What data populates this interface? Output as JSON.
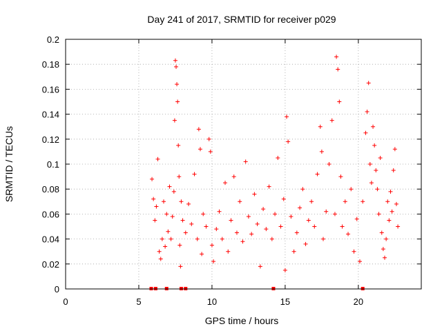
{
  "chart_data": {
    "type": "scatter",
    "title": "Day 241 of 2017, SRMTID for receiver p029",
    "xlabel": "GPS time / hours",
    "ylabel": "SRMTID / TECUs",
    "xlim": [
      0,
      24.3
    ],
    "ylim": [
      0,
      0.2
    ],
    "x_ticks": [
      0,
      5,
      10,
      15,
      20
    ],
    "x_tick_labels": [
      "0",
      "5",
      "10",
      "15",
      "20"
    ],
    "y_ticks": [
      0,
      0.02,
      0.04,
      0.06,
      0.08,
      0.1,
      0.12,
      0.14,
      0.16,
      0.18,
      0.2
    ],
    "y_tick_labels": [
      "0",
      "0.02",
      "0.04",
      "0.06",
      "0.08",
      "0.1",
      "0.12",
      "0.14",
      "0.16",
      "0.18",
      "0.2"
    ],
    "grid": true,
    "marker": "plus",
    "color": "#ff0000",
    "zero_markers_x": [
      5.85,
      6.15,
      6.9,
      7.9,
      8.2,
      14.2,
      20.3
    ],
    "points": [
      {
        "x": 5.9,
        "y": 0.088
      },
      {
        "x": 6.0,
        "y": 0.072
      },
      {
        "x": 6.1,
        "y": 0.055
      },
      {
        "x": 6.2,
        "y": 0.066
      },
      {
        "x": 6.3,
        "y": 0.104
      },
      {
        "x": 6.4,
        "y": 0.03
      },
      {
        "x": 6.5,
        "y": 0.024
      },
      {
        "x": 6.6,
        "y": 0.04
      },
      {
        "x": 6.7,
        "y": 0.07
      },
      {
        "x": 6.8,
        "y": 0.034
      },
      {
        "x": 6.9,
        "y": 0.06
      },
      {
        "x": 7.0,
        "y": 0.046
      },
      {
        "x": 7.1,
        "y": 0.082
      },
      {
        "x": 7.2,
        "y": 0.04
      },
      {
        "x": 7.3,
        "y": 0.058
      },
      {
        "x": 7.4,
        "y": 0.078
      },
      {
        "x": 7.45,
        "y": 0.135
      },
      {
        "x": 7.5,
        "y": 0.183
      },
      {
        "x": 7.55,
        "y": 0.178
      },
      {
        "x": 7.6,
        "y": 0.164
      },
      {
        "x": 7.65,
        "y": 0.15
      },
      {
        "x": 7.7,
        "y": 0.115
      },
      {
        "x": 7.75,
        "y": 0.09
      },
      {
        "x": 7.8,
        "y": 0.035
      },
      {
        "x": 7.85,
        "y": 0.018
      },
      {
        "x": 7.9,
        "y": 0.07
      },
      {
        "x": 8.0,
        "y": 0.055
      },
      {
        "x": 8.2,
        "y": 0.045
      },
      {
        "x": 8.4,
        "y": 0.068
      },
      {
        "x": 8.6,
        "y": 0.052
      },
      {
        "x": 8.8,
        "y": 0.092
      },
      {
        "x": 9.0,
        "y": 0.04
      },
      {
        "x": 9.1,
        "y": 0.128
      },
      {
        "x": 9.2,
        "y": 0.112
      },
      {
        "x": 9.3,
        "y": 0.028
      },
      {
        "x": 9.4,
        "y": 0.06
      },
      {
        "x": 9.6,
        "y": 0.05
      },
      {
        "x": 9.8,
        "y": 0.12
      },
      {
        "x": 9.9,
        "y": 0.11
      },
      {
        "x": 10.0,
        "y": 0.035
      },
      {
        "x": 10.1,
        "y": 0.022
      },
      {
        "x": 10.3,
        "y": 0.048
      },
      {
        "x": 10.5,
        "y": 0.062
      },
      {
        "x": 10.7,
        "y": 0.04
      },
      {
        "x": 10.9,
        "y": 0.085
      },
      {
        "x": 11.1,
        "y": 0.03
      },
      {
        "x": 11.3,
        "y": 0.055
      },
      {
        "x": 11.5,
        "y": 0.09
      },
      {
        "x": 11.7,
        "y": 0.045
      },
      {
        "x": 11.9,
        "y": 0.07
      },
      {
        "x": 12.1,
        "y": 0.038
      },
      {
        "x": 12.3,
        "y": 0.102
      },
      {
        "x": 12.5,
        "y": 0.058
      },
      {
        "x": 12.7,
        "y": 0.044
      },
      {
        "x": 12.9,
        "y": 0.076
      },
      {
        "x": 13.1,
        "y": 0.052
      },
      {
        "x": 13.3,
        "y": 0.018
      },
      {
        "x": 13.5,
        "y": 0.064
      },
      {
        "x": 13.7,
        "y": 0.048
      },
      {
        "x": 13.9,
        "y": 0.082
      },
      {
        "x": 14.1,
        "y": 0.04
      },
      {
        "x": 14.3,
        "y": 0.06
      },
      {
        "x": 14.5,
        "y": 0.105
      },
      {
        "x": 14.7,
        "y": 0.05
      },
      {
        "x": 14.9,
        "y": 0.072
      },
      {
        "x": 15.0,
        "y": 0.015
      },
      {
        "x": 15.1,
        "y": 0.138
      },
      {
        "x": 15.2,
        "y": 0.118
      },
      {
        "x": 15.4,
        "y": 0.058
      },
      {
        "x": 15.6,
        "y": 0.03
      },
      {
        "x": 15.8,
        "y": 0.045
      },
      {
        "x": 16.0,
        "y": 0.065
      },
      {
        "x": 16.2,
        "y": 0.08
      },
      {
        "x": 16.4,
        "y": 0.036
      },
      {
        "x": 16.6,
        "y": 0.055
      },
      {
        "x": 16.8,
        "y": 0.07
      },
      {
        "x": 17.0,
        "y": 0.05
      },
      {
        "x": 17.2,
        "y": 0.092
      },
      {
        "x": 17.4,
        "y": 0.13
      },
      {
        "x": 17.5,
        "y": 0.11
      },
      {
        "x": 17.6,
        "y": 0.04
      },
      {
        "x": 17.8,
        "y": 0.062
      },
      {
        "x": 18.0,
        "y": 0.1
      },
      {
        "x": 18.2,
        "y": 0.135
      },
      {
        "x": 18.4,
        "y": 0.06
      },
      {
        "x": 18.5,
        "y": 0.186
      },
      {
        "x": 18.6,
        "y": 0.176
      },
      {
        "x": 18.7,
        "y": 0.15
      },
      {
        "x": 18.8,
        "y": 0.09
      },
      {
        "x": 18.9,
        "y": 0.05
      },
      {
        "x": 19.1,
        "y": 0.07
      },
      {
        "x": 19.3,
        "y": 0.044
      },
      {
        "x": 19.5,
        "y": 0.08
      },
      {
        "x": 19.7,
        "y": 0.03
      },
      {
        "x": 19.9,
        "y": 0.056
      },
      {
        "x": 20.1,
        "y": 0.022
      },
      {
        "x": 20.3,
        "y": 0.07
      },
      {
        "x": 20.5,
        "y": 0.125
      },
      {
        "x": 20.6,
        "y": 0.142
      },
      {
        "x": 20.7,
        "y": 0.165
      },
      {
        "x": 20.8,
        "y": 0.1
      },
      {
        "x": 20.9,
        "y": 0.085
      },
      {
        "x": 21.0,
        "y": 0.13
      },
      {
        "x": 21.1,
        "y": 0.115
      },
      {
        "x": 21.2,
        "y": 0.095
      },
      {
        "x": 21.3,
        "y": 0.08
      },
      {
        "x": 21.4,
        "y": 0.06
      },
      {
        "x": 21.5,
        "y": 0.105
      },
      {
        "x": 21.6,
        "y": 0.045
      },
      {
        "x": 21.7,
        "y": 0.032
      },
      {
        "x": 21.8,
        "y": 0.025
      },
      {
        "x": 21.9,
        "y": 0.04
      },
      {
        "x": 22.0,
        "y": 0.07
      },
      {
        "x": 22.1,
        "y": 0.055
      },
      {
        "x": 22.2,
        "y": 0.078
      },
      {
        "x": 22.3,
        "y": 0.062
      },
      {
        "x": 22.4,
        "y": 0.095
      },
      {
        "x": 22.5,
        "y": 0.112
      },
      {
        "x": 22.6,
        "y": 0.068
      },
      {
        "x": 22.7,
        "y": 0.05
      }
    ]
  }
}
